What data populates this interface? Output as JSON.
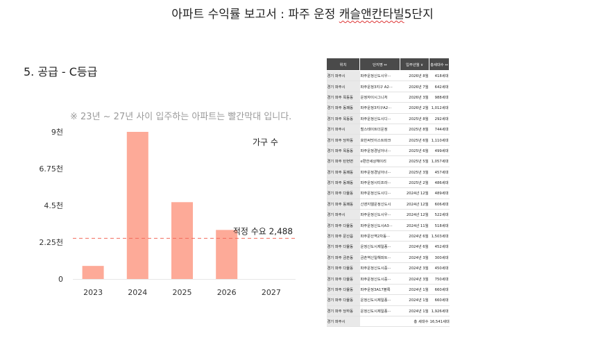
{
  "page": {
    "title_plain": "아파트 수익률 보고서 : 파주 운정 ",
    "title_marked": "캐슬앤칸타빌",
    "title_tail": "5단지",
    "section_heading": "5. 공급 -   C등급",
    "note": "※ 23년 ~ 27년 사이 입주하는 아파트는 빨간막대 입니다."
  },
  "chart_data": {
    "type": "bar",
    "categories": [
      "2023",
      "2024",
      "2025",
      "2026",
      "2027"
    ],
    "values": [
      800,
      9000,
      4700,
      3000,
      0
    ],
    "legend": "가구 수",
    "ylim": [
      0,
      9000
    ],
    "yticks": [
      {
        "value": 0,
        "label": "0"
      },
      {
        "value": 2250,
        "label": "2.25천"
      },
      {
        "value": 4500,
        "label": "4.5천"
      },
      {
        "value": 6750,
        "label": "6.75천"
      },
      {
        "value": 9000,
        "label": "9천"
      }
    ],
    "reference_line": {
      "value": 2488,
      "label": "적정 수요 2,488"
    },
    "colors": {
      "bar": "#fdaa98",
      "reference": "#f26a5b",
      "axis_text": "#333333"
    }
  },
  "table": {
    "headers": [
      "위치",
      "단지명 ↔",
      "입주년월 ∨",
      "총세대수 ↔"
    ],
    "rows": [
      [
        "경기 파주시",
        "파주운정신도시우···",
        "2026년 8월",
        "418세대"
      ],
      [
        "경기 파주시",
        "파주운정3지구 A2···",
        "2026년 7월",
        "642세대"
      ],
      [
        "경기 파주 목동동",
        "운정자이시그니처",
        "2026년 3월",
        "988세대"
      ],
      [
        "경기 파주 동패동",
        "파주운정3지구A2···",
        "2026년 2월",
        "1,012세대"
      ],
      [
        "경기 파주 목동동",
        "파주운정신도시디···",
        "2025년 8월",
        "292세대"
      ],
      [
        "경기 파주시",
        "힐스테이트더운정",
        "2025년 8월",
        "744세대"
      ],
      [
        "경기 파주 당하동",
        "호반써밋이스트파크",
        "2025년 6월",
        "1,110세대"
      ],
      [
        "경기 파주 목동동",
        "파주운정경남아너···",
        "2025년 6월",
        "499세대"
      ],
      [
        "경기 파주 탄현면",
        "e편한세상헤이리",
        "2025년 5월",
        "1,057세대"
      ],
      [
        "경기 파주 동패동",
        "파주운정경남아너···",
        "2025년 3월",
        "457세대"
      ],
      [
        "경기 파주 동패동",
        "파주운정시티프라···",
        "2025년 2월",
        "486세대"
      ],
      [
        "경기 파주 다율동",
        "파주운정신도시디···",
        "2024년 12월",
        "489세대"
      ],
      [
        "경기 파주 동패동",
        "신영지웰운정신도시",
        "2024년 12월",
        "606세대"
      ],
      [
        "경기 파주시",
        "파주운정신도시우···",
        "2024년 12월",
        "522세대"
      ],
      [
        "경기 파주 다율동",
        "파주운정신도시A3···",
        "2024년 11월",
        "518세대"
      ],
      [
        "경기 파주 문산읍",
        "파주문산역2차동···",
        "2024년 6월",
        "1,503세대"
      ],
      [
        "경기 파주 다율동",
        "운정신도시제일풍···",
        "2024년 6월",
        "452세대"
      ],
      [
        "경기 파주 금촌동",
        "금촌역신일해피트···",
        "2024년 3월",
        "300세대"
      ],
      [
        "경기 파주 다율동",
        "파주운정신도시중···",
        "2024년 3월",
        "450세대"
      ],
      [
        "경기 파주 다율동",
        "파주운정신도시중···",
        "2024년 3월",
        "750세대"
      ],
      [
        "경기 파주 다율동",
        "파주운정3A17블록",
        "2024년 1월",
        "660세대"
      ],
      [
        "경기 파주 다율동",
        "운정신도시제일풍···",
        "2024년 1월",
        "660세대"
      ],
      [
        "경기 파주 당하동",
        "운정신도시제일풍···",
        "2024년 1월",
        "1,926세대"
      ],
      [
        "경기 파주시",
        "",
        "총 세대수",
        "16,541세대"
      ]
    ]
  }
}
